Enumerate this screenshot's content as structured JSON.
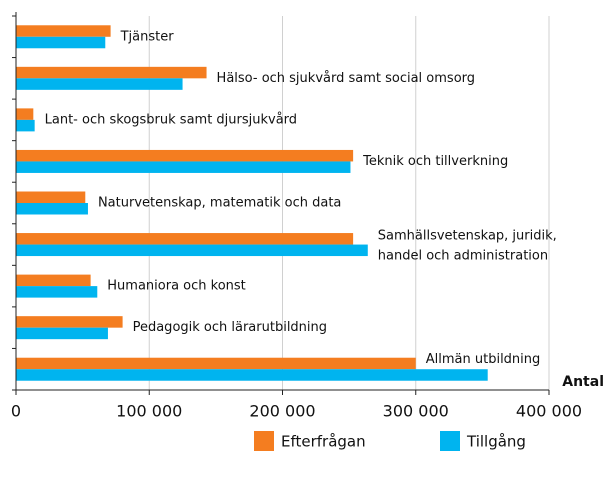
{
  "chart_data": {
    "type": "hbar",
    "categories": [
      "Tjänster",
      "Hälso- och sjukvård samt social omsorg",
      "Lant- och skogsbruk samt djursjukvård",
      "Teknik och tillverkning",
      "Naturvetenskap, matematik och data",
      "Samhällsvetenskap, juridik, handel och administration",
      "Humaniora och konst",
      "Pedagogik och lärarutbildning",
      "Allmän utbildning"
    ],
    "series": [
      {
        "name": "Efterfrågan",
        "color": "#f47d20",
        "values": [
          71000,
          143000,
          13000,
          253000,
          52000,
          253000,
          56000,
          80000,
          300000
        ]
      },
      {
        "name": "Tillgång",
        "color": "#00b4ef",
        "values": [
          67000,
          125000,
          14000,
          251000,
          54000,
          264000,
          61000,
          69000,
          354000
        ]
      }
    ],
    "xlabel": "Antal",
    "xlim": [
      0,
      400000
    ],
    "xticks": [
      0,
      {
        "value": 100000,
        "label": "100 000"
      },
      {
        "value": 200000,
        "label": "200 000"
      },
      {
        "value": 300000,
        "label": "300 000"
      },
      {
        "value": 400000,
        "label": "400 000"
      }
    ],
    "grid": true,
    "legend": "bottom"
  }
}
